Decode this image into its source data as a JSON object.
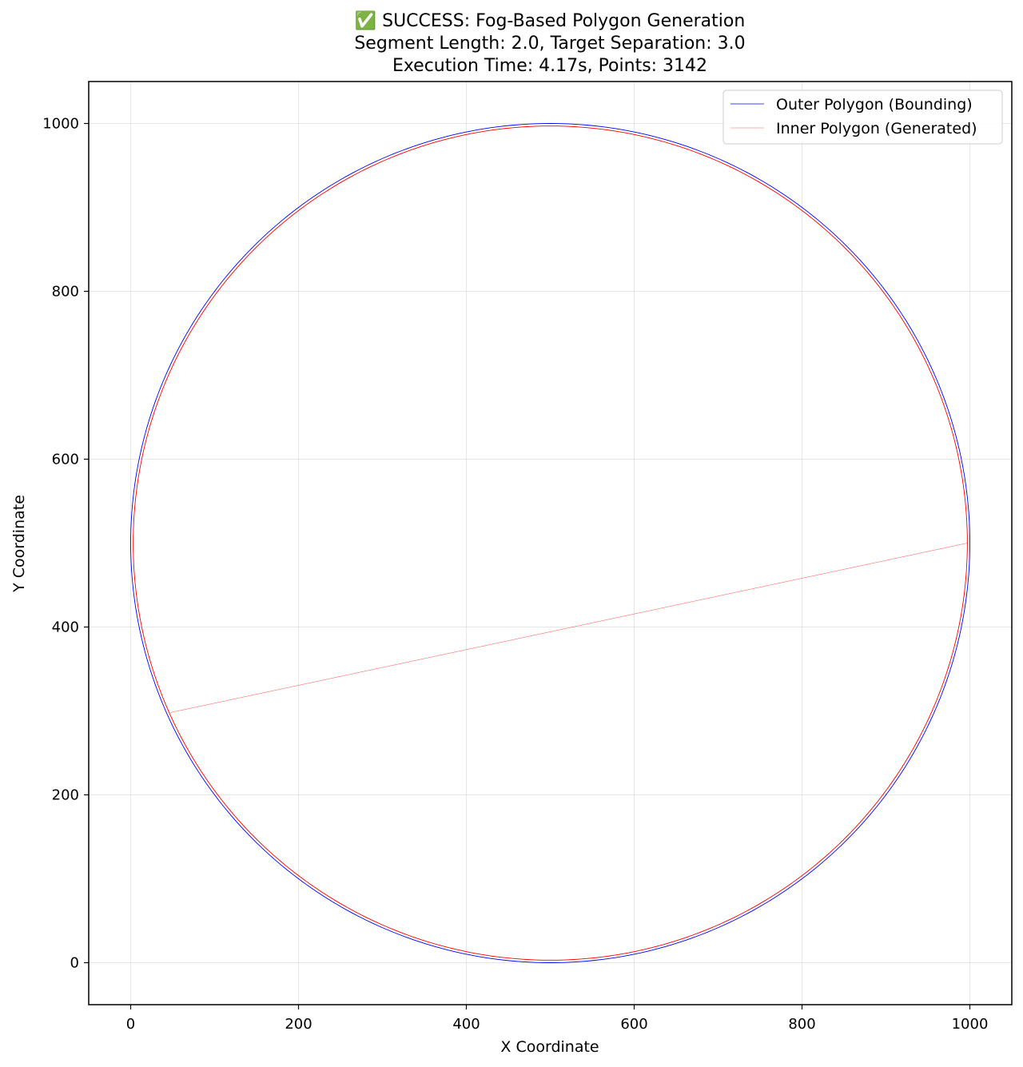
{
  "chart_data": {
    "type": "line",
    "title_lines": [
      "✅ SUCCESS: Fog-Based Polygon Generation",
      "Segment Length: 2.0, Target Separation: 3.0",
      "Execution Time: 4.17s, Points: 3142"
    ],
    "xlabel": "X Coordinate",
    "ylabel": "Y Coordinate",
    "xlim": [
      -50,
      1050
    ],
    "ylim": [
      -50,
      1050
    ],
    "xticks": [
      0,
      200,
      400,
      600,
      800,
      1000
    ],
    "yticks": [
      0,
      200,
      400,
      600,
      800,
      1000
    ],
    "grid": true,
    "legend_position": "top-right",
    "series": [
      {
        "name": "Outer Polygon (Bounding)",
        "shape": "circle",
        "center": [
          500,
          500
        ],
        "radius": 500,
        "color": "#0000ff"
      },
      {
        "name": "Inner Polygon (Generated)",
        "shape": "circle",
        "center": [
          500,
          500
        ],
        "radius": 497,
        "color": "#ff0000",
        "closing_segment": {
          "from": [
            47,
            298
          ],
          "to": [
            997,
            500
          ]
        }
      }
    ]
  }
}
